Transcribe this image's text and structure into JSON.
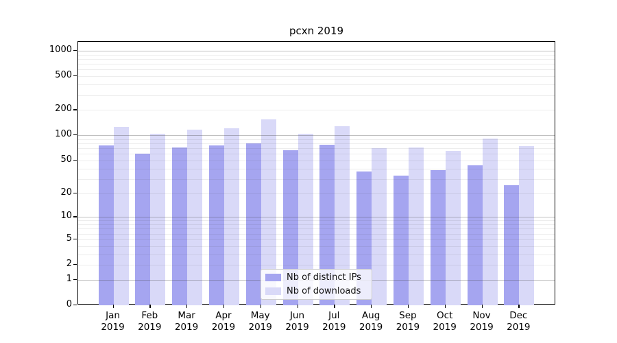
{
  "title": "pcxn 2019",
  "legend": {
    "position": "lower center",
    "items": [
      {
        "label": "Nb of distinct IPs",
        "color": "#a5a5f0"
      },
      {
        "label": "Nb of downloads",
        "color": "#d9d9f8"
      }
    ]
  },
  "colors": {
    "distinct_ips_bar": "#a5a5f0",
    "downloads_bar": "#d9d9f8",
    "major_gridline": "#9e9e9e",
    "minor_gridline": "#e8e8e8",
    "axis": "#000000",
    "background": "#ffffff"
  },
  "chart_data": {
    "type": "bar",
    "title": "pcxn 2019",
    "categories": [
      "Jan",
      "Feb",
      "Mar",
      "Apr",
      "May",
      "Jun",
      "Jul",
      "Aug",
      "Sep",
      "Oct",
      "Nov",
      "Dec"
    ],
    "x_year": "2019",
    "series": [
      {
        "name": "Nb of distinct IPs",
        "color": "#a5a5f0",
        "values": [
          75,
          60,
          72,
          75,
          80,
          66,
          77,
          37,
          33,
          38,
          44,
          25
        ]
      },
      {
        "name": "Nb of downloads",
        "color": "#d9d9f8",
        "values": [
          126,
          104,
          117,
          120,
          155,
          105,
          129,
          70,
          72,
          65,
          91,
          74
        ]
      }
    ],
    "xlabel": "",
    "ylabel": "",
    "y_scale": "log10(value+1)",
    "y_ticks": [
      0,
      1,
      2,
      5,
      10,
      20,
      50,
      100,
      200,
      500,
      1000
    ],
    "y_major_gridlines": [
      1,
      10,
      100,
      1000
    ],
    "ylim": [
      0,
      1275
    ],
    "grid": true,
    "legend_position": "lower center"
  }
}
